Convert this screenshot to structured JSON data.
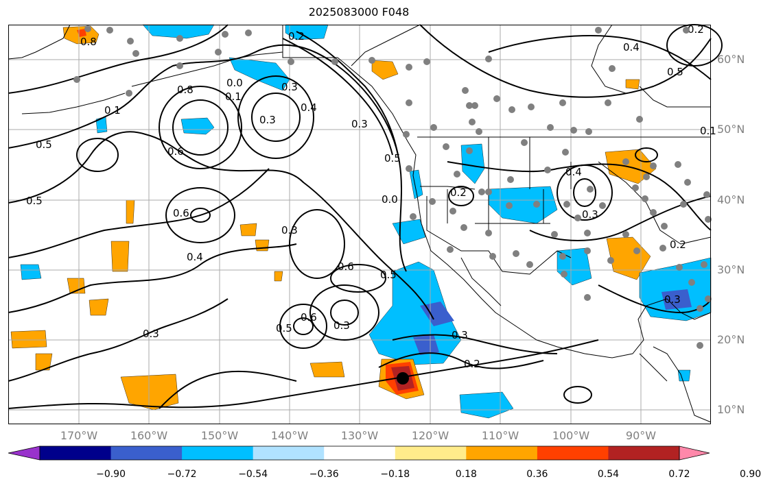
{
  "title": "2025083000 F048",
  "latitude_labels": [
    "60°N",
    "50°N",
    "40°N",
    "30°N",
    "20°N",
    "10°N"
  ],
  "longitude_labels": [
    "170°W",
    "160°W",
    "150°W",
    "140°W",
    "130°W",
    "120°W",
    "110°W",
    "100°W",
    "90°W"
  ],
  "colorbar": {
    "ticks": [
      "−0.90",
      "−0.72",
      "−0.54",
      "−0.36",
      "−0.18",
      "0.18",
      "0.36",
      "0.54",
      "0.72",
      "0.90"
    ],
    "colors": [
      "#9932cc",
      "#00008b",
      "#3a5fcd",
      "#00bfff",
      "#b0e2ff",
      "#ffffff",
      "#ffec8b",
      "#ffa500",
      "#ff4000",
      "#b22222",
      "#ff88aa"
    ]
  },
  "contour_labels": [
    "0.8",
    "0.2",
    "0.4",
    "0.5",
    "0.1",
    "0.8",
    "0.1",
    "0.3",
    "0.3",
    "0.4",
    "0.5",
    "0.6",
    "0.5",
    "0.5",
    "0.0",
    "0.6",
    "0.3",
    "0.4",
    "0.3",
    "0.6",
    "0.5",
    "0.5",
    "0.6",
    "0.3",
    "0.3",
    "0.3",
    "0.2",
    "0.2",
    "0.4",
    "0.3",
    "0.2",
    "0.3",
    "0.0",
    "0.2",
    "0.1"
  ],
  "colors": {
    "land_line": "#000000",
    "grid": "#aaaaaa",
    "station": "#808080",
    "label": "#808080"
  }
}
